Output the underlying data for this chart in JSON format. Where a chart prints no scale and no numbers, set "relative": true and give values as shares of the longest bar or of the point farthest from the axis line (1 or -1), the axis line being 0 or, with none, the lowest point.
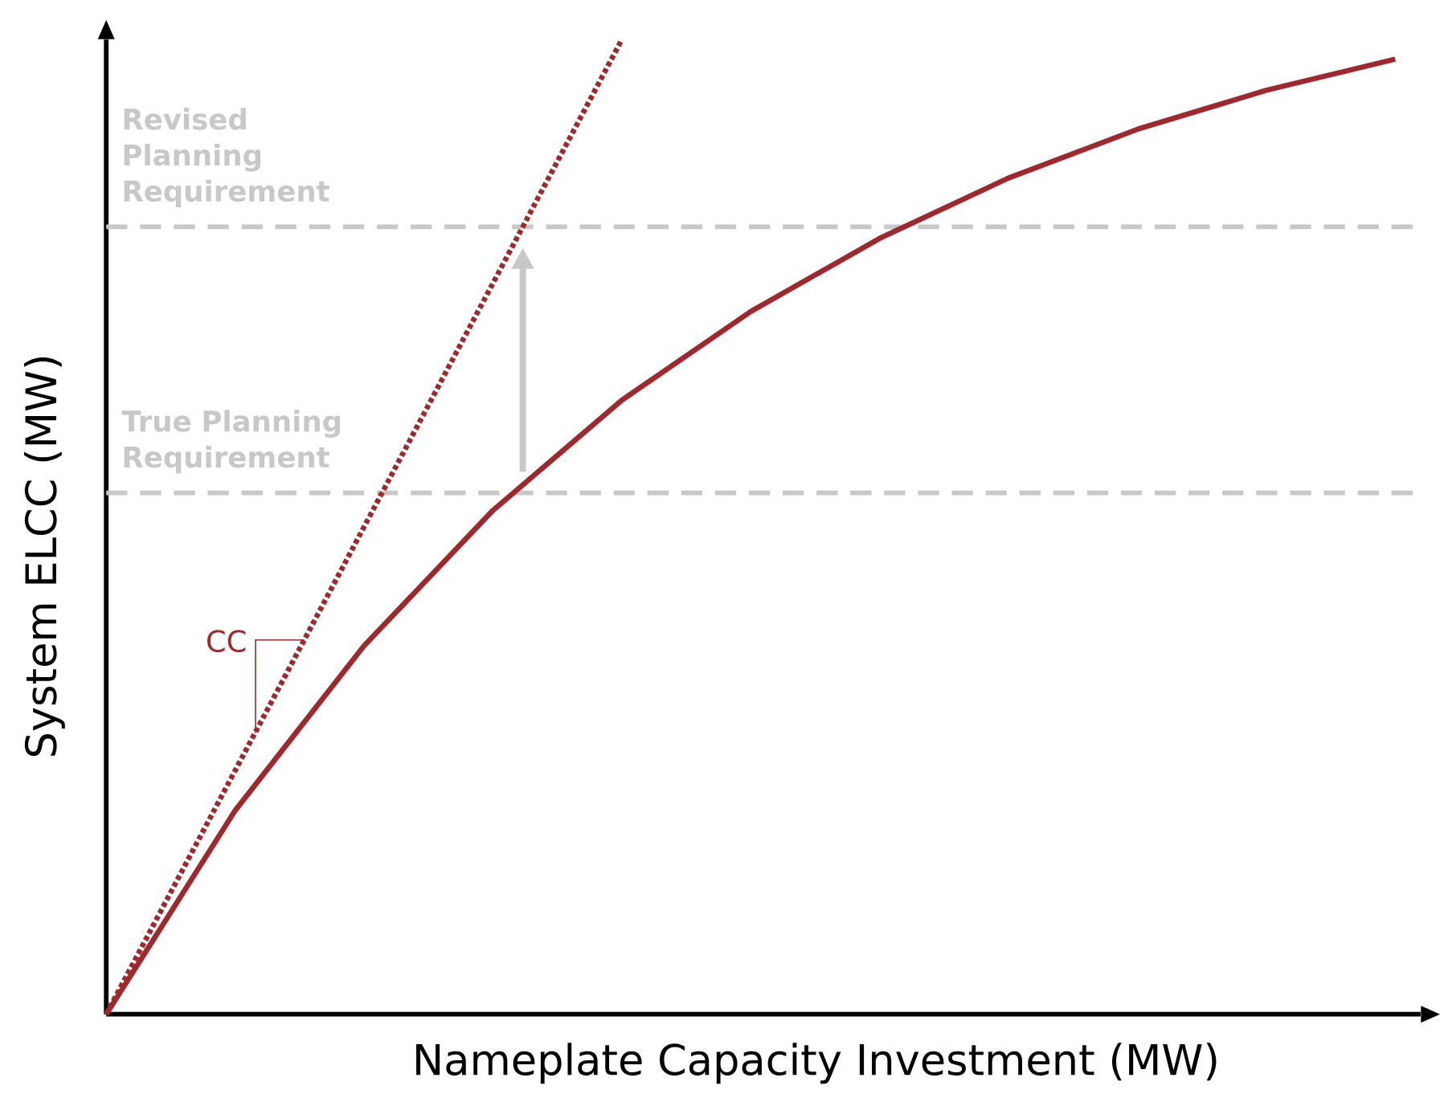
{
  "chart_data": {
    "type": "line",
    "relative": true,
    "xlabel": "Nameplate Capacity Investment (MW)",
    "ylabel": "System ELCC (MW)",
    "marker": "none",
    "grid": false,
    "categories": [
      null,
      null,
      null,
      null,
      null,
      null,
      null,
      null,
      null,
      null,
      null
    ],
    "series": [
      {
        "color": "#a0282c",
        "line_style": "solid",
        "values": [
          0,
          0.209,
          0.378,
          0.517,
          0.63,
          0.721,
          0.796,
          0.858,
          0.908,
          0.948,
          0.98
        ]
      },
      {
        "color": "#a0282c",
        "line_style": "dotted",
        "values": [
          0,
          0.25,
          0.5,
          0.75,
          1,
          null,
          null,
          null,
          null,
          null,
          null
        ]
      }
    ],
    "ref_lines": [
      {
        "axis": "y",
        "value": 0.535,
        "label": "True Planning Requirement",
        "color": "#c8c8c8",
        "line_style": "dashed"
      },
      {
        "axis": "y",
        "value": 0.808,
        "label": "Revised Planning Requirement",
        "color": "#c8c8c8",
        "line_style": "dashed"
      }
    ],
    "annotations": [
      "CC"
    ]
  }
}
